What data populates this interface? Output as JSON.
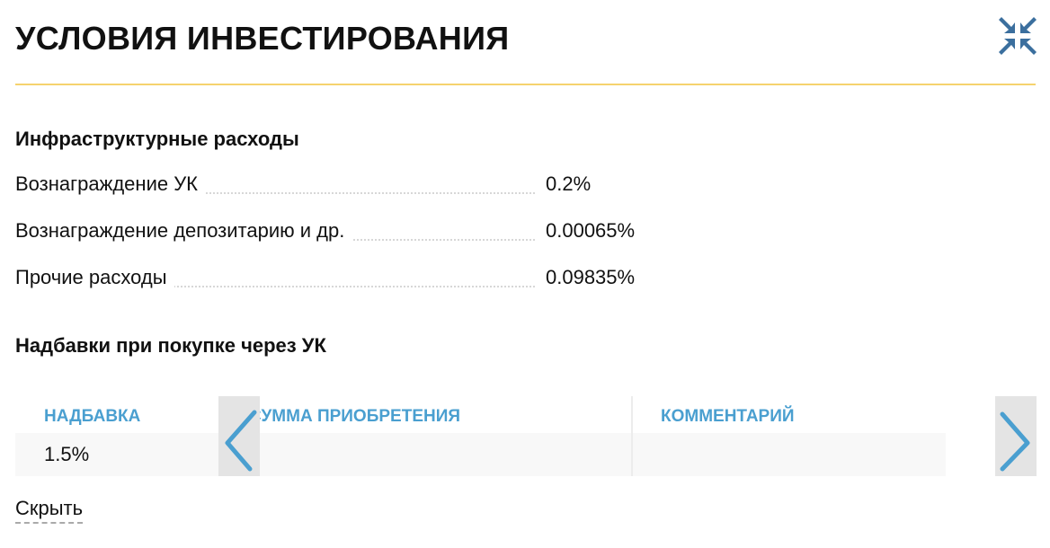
{
  "title": "УСЛОВИЯ ИНВЕСТИРОВАНИЯ",
  "icons": {
    "collapse": "collapse-arrows-icon",
    "prev": "chevron-left-icon",
    "next": "chevron-right-icon"
  },
  "colors": {
    "accent": "#4a9fd0",
    "rule": "#f5d36e",
    "icon": "#3b6f9e"
  },
  "infra": {
    "heading": "Инфраструктурные расходы",
    "rows": [
      {
        "label": "Вознаграждение УК",
        "value": "0.2%"
      },
      {
        "label": "Вознаграждение депозитарию и др.",
        "value": "0.00065%"
      },
      {
        "label": "Прочие расходы",
        "value": "0.09835%"
      }
    ]
  },
  "markup": {
    "heading": "Надбавки при покупке через УК",
    "columns": [
      "НАДБАВКА",
      "СУММА ПРИОБРЕТЕНИЯ",
      "КОММЕНТАРИЙ"
    ],
    "rows": [
      [
        "1.5%",
        "",
        ""
      ]
    ]
  },
  "hide_label": "Скрыть"
}
